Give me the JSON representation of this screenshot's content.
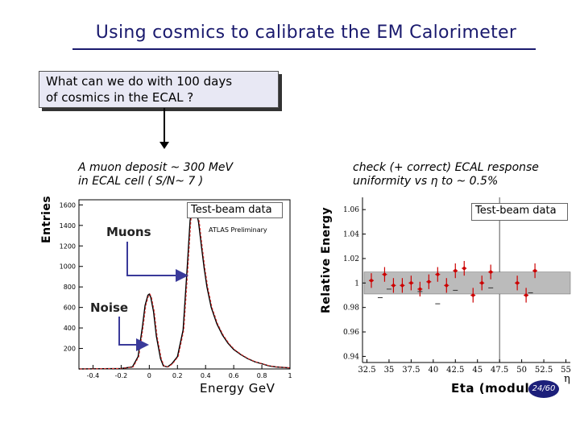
{
  "title": "Using cosmics to calibrate the EM Calorimeter",
  "question": [
    "What can we do with 100 days",
    "of cosmics in the ECAL ?"
  ],
  "left_caption": [
    "A muon deposit ~ 300 MeV",
    "in ECAL cell ( S/N~ 7 )"
  ],
  "right_caption": [
    "check (+ correct) ECAL response",
    "uniformity vs η to ~ 0.5%"
  ],
  "left_ylabel": "Entries",
  "right_ylabel": "Relative Energy",
  "left_xlabel": "Energy GeV",
  "right_xlabel": "Eta (module)",
  "eta_symbol": "η",
  "testbeam_label": "Test-beam data",
  "atlas_preliminary": "ATLAS Preliminary",
  "muons_label": "Muons",
  "noise_label": "Noise",
  "page_number": "24/60",
  "colors": {
    "title": "#1a1a6e",
    "fit_curve": "#e03030",
    "points": "#cc0000",
    "band": "#bbbbbb",
    "badge": "#1c1f7a"
  },
  "chart_data": [
    {
      "type": "line",
      "xlabel": "Energy GeV",
      "ylabel": "Entries",
      "x_ticks": [
        "-0.4",
        "-0.2",
        "0",
        "0.2",
        "0.4",
        "0.6",
        "0.8",
        "1"
      ],
      "y_ticks": [
        "200",
        "400",
        "600",
        "800",
        "1000",
        "1200",
        "1400",
        "1600"
      ],
      "xlim": [
        -0.5,
        1.0
      ],
      "ylim": [
        0,
        1650
      ],
      "legend": "Test-beam data",
      "series": [
        {
          "name": "Test-beam data",
          "x": [
            -0.5,
            -0.2,
            -0.12,
            -0.08,
            -0.05,
            -0.03,
            -0.01,
            0.0,
            0.01,
            0.03,
            0.05,
            0.08,
            0.1,
            0.13,
            0.16,
            0.2,
            0.24,
            0.27,
            0.29,
            0.31,
            0.33,
            0.35,
            0.37,
            0.39,
            0.41,
            0.44,
            0.48,
            0.52,
            0.56,
            0.6,
            0.65,
            0.7,
            0.75,
            0.8,
            0.85,
            0.9,
            1.0
          ],
          "y": [
            0,
            5,
            20,
            120,
            400,
            620,
            720,
            730,
            700,
            560,
            320,
            100,
            30,
            20,
            50,
            120,
            380,
            1000,
            1450,
            1600,
            1570,
            1430,
            1200,
            980,
            800,
            600,
            440,
            330,
            250,
            190,
            140,
            100,
            70,
            50,
            30,
            20,
            10
          ]
        }
      ]
    },
    {
      "type": "scatter",
      "xlabel": "Eta (module)",
      "ylabel": "Relative Energy",
      "x_ticks": [
        "32.5",
        "35",
        "37.5",
        "40",
        "42.5",
        "45",
        "47.5",
        "50",
        "52.5",
        "55"
      ],
      "y_ticks": [
        "0.94",
        "0.96",
        "0.98",
        "1",
        "1.02",
        "1.04",
        "1.06"
      ],
      "xlim": [
        32.0,
        55.5
      ],
      "ylim": [
        0.935,
        1.07
      ],
      "band": [
        0.995,
        1.005
      ],
      "vertical_line_x": 47.5,
      "legend": "Test-beam data",
      "series": [
        {
          "name": "Test-beam data",
          "x": [
            33.0,
            34.5,
            35.5,
            36.5,
            37.5,
            38.5,
            39.5,
            40.5,
            41.5,
            42.5,
            43.5,
            44.5,
            45.5,
            46.5,
            49.5,
            50.5,
            51.5
          ],
          "y": [
            1.002,
            1.007,
            0.998,
            0.998,
            1.0,
            0.995,
            1.001,
            1.007,
            0.998,
            1.01,
            1.012,
            0.99,
            1.0,
            1.009,
            1.0,
            0.99,
            1.01
          ],
          "err": [
            0.006,
            0.006,
            0.006,
            0.006,
            0.006,
            0.006,
            0.006,
            0.006,
            0.006,
            0.006,
            0.006,
            0.006,
            0.006,
            0.006,
            0.006,
            0.006,
            0.006
          ]
        },
        {
          "name": "Test-beam data",
          "x": [
            34.0,
            35.0,
            38.5,
            40.5,
            42.5,
            46.5,
            51.0
          ],
          "y": [
            0.988,
            0.995,
            0.993,
            0.983,
            0.994,
            0.996,
            0.992
          ]
        }
      ]
    }
  ]
}
